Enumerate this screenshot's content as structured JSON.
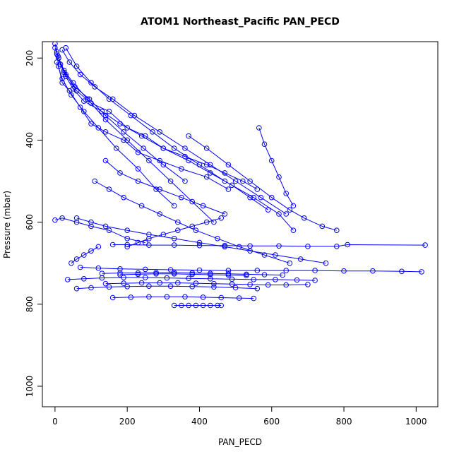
{
  "chart_data": {
    "type": "line",
    "title": "ATOM1 Northeast_Pacific PAN_PECD",
    "xlabel": "PAN_PECD",
    "ylabel": "Pressure (mbar)",
    "xlim": [
      -35,
      1060
    ],
    "ylim": [
      1050,
      160
    ],
    "y_reversed": true,
    "grid": false,
    "legend": "none",
    "color": "#0000ff",
    "x_ticks": [
      0,
      200,
      400,
      600,
      800,
      1000
    ],
    "x_tick_labels": [
      "0",
      "200",
      "400",
      "600",
      "800",
      "1000"
    ],
    "y_ticks": [
      200,
      400,
      600,
      800,
      1000
    ],
    "y_tick_labels": [
      "200",
      "400",
      "600",
      "800",
      "1000"
    ],
    "series": [
      {
        "x": [
          5,
          10,
          20,
          40,
          70,
          100,
          140,
          190,
          230,
          290,
          350,
          420,
          480
        ],
        "y": [
          190,
          220,
          260,
          280,
          320,
          360,
          380,
          400,
          430,
          450,
          470,
          490,
          520
        ]
      },
      {
        "x": [
          10,
          30,
          60,
          100,
          150,
          200,
          250,
          300,
          360,
          420,
          470,
          520,
          560
        ],
        "y": [
          200,
          240,
          280,
          310,
          330,
          370,
          390,
          420,
          440,
          460,
          480,
          500,
          520
        ]
      },
      {
        "x": [
          0,
          5,
          15,
          30,
          50,
          80,
          130,
          180,
          240,
          300,
          370,
          430,
          490,
          540,
          590
        ],
        "y": [
          165,
          185,
          215,
          245,
          275,
          305,
          330,
          360,
          390,
          420,
          450,
          480,
          510,
          540,
          570
        ]
      },
      {
        "x": [
          20,
          40,
          70,
          110,
          160,
          220,
          290,
          360,
          430,
          500,
          570,
          640
        ],
        "y": [
          180,
          210,
          240,
          270,
          300,
          340,
          380,
          420,
          460,
          500,
          540,
          580
        ]
      },
      {
        "x": [
          5,
          20,
          45,
          80,
          120,
          170,
          230,
          280,
          330
        ],
        "y": [
          210,
          250,
          290,
          330,
          370,
          420,
          470,
          520,
          560
        ]
      },
      {
        "x": [
          0,
          10,
          25,
          50,
          90,
          140,
          200,
          260,
          320,
          380,
          440
        ],
        "y": [
          175,
          200,
          230,
          260,
          300,
          350,
          400,
          450,
          500,
          550,
          600
        ]
      },
      {
        "x": [
          30,
          60,
          100,
          150,
          210,
          270,
          330,
          400,
          470,
          550,
          620,
          660
        ],
        "y": [
          175,
          220,
          260,
          300,
          340,
          380,
          420,
          460,
          500,
          540,
          580,
          620
        ]
      },
      {
        "x": [
          8,
          25,
          55,
          95,
          140,
          190,
          245,
          300,
          360
        ],
        "y": [
          195,
          235,
          270,
          300,
          340,
          380,
          420,
          460,
          500
        ]
      },
      {
        "x": [
          370,
          420,
          480,
          540,
          600,
          650,
          690,
          740,
          780
        ],
        "y": [
          390,
          420,
          460,
          500,
          540,
          570,
          590,
          610,
          620
        ]
      },
      {
        "x": [
          565,
          580,
          600,
          620,
          640,
          660
        ],
        "y": [
          370,
          410,
          450,
          490,
          530,
          560
        ]
      },
      {
        "x": [
          140,
          180,
          230,
          290,
          350,
          410,
          470
        ],
        "y": [
          450,
          480,
          500,
          520,
          540,
          560,
          580
        ]
      },
      {
        "x": [
          110,
          150,
          190,
          240,
          290,
          340,
          390,
          450,
          510,
          580,
          650
        ],
        "y": [
          500,
          520,
          540,
          560,
          580,
          600,
          620,
          640,
          660,
          680,
          700
        ]
      },
      {
        "x": [
          60,
          100,
          140,
          200,
          260,
          330,
          400,
          470,
          540,
          610,
          680,
          750
        ],
        "y": [
          590,
          600,
          610,
          620,
          630,
          640,
          650,
          660,
          670,
          680,
          690,
          700
        ]
      },
      {
        "x": [
          0,
          20,
          60,
          100,
          150,
          200,
          250
        ],
        "y": [
          595,
          590,
          600,
          610,
          620,
          640,
          650
        ]
      },
      {
        "x": [
          160,
          200,
          260,
          330,
          400,
          470,
          540,
          620,
          700,
          780,
          810,
          1025
        ],
        "y": [
          655,
          655,
          656,
          656,
          657,
          657,
          658,
          658,
          659,
          659,
          655,
          656
        ]
      },
      {
        "x": [
          70,
          120,
          180,
          250,
          320,
          400,
          480,
          560,
          640,
          720,
          800,
          880,
          960,
          1015
        ],
        "y": [
          710,
          712,
          714,
          715,
          716,
          717,
          718,
          718,
          718,
          718,
          719,
          719,
          720,
          721
        ]
      },
      {
        "x": [
          35,
          80,
          130,
          190,
          250,
          310,
          370,
          430,
          490,
          550,
          610,
          670,
          720
        ],
        "y": [
          740,
          738,
          736,
          735,
          735,
          736,
          737,
          738,
          739,
          740,
          740,
          741,
          742
        ]
      },
      {
        "x": [
          140,
          190,
          240,
          290,
          340,
          390,
          440,
          490,
          540,
          590,
          640,
          700
        ],
        "y": [
          750,
          749,
          748,
          748,
          748,
          749,
          750,
          751,
          752,
          753,
          753,
          752
        ]
      },
      {
        "x": [
          60,
          100,
          150,
          200,
          260,
          320,
          380,
          440,
          500,
          560
        ],
        "y": [
          762,
          760,
          758,
          757,
          756,
          756,
          757,
          758,
          760,
          762
        ]
      },
      {
        "x": [
          180,
          230,
          280,
          330,
          380,
          430,
          480,
          530
        ],
        "y": [
          728,
          727,
          726,
          726,
          727,
          728,
          729,
          730
        ]
      },
      {
        "x": [
          130,
          180,
          230,
          280,
          330,
          380,
          430,
          480,
          530,
          580,
          630
        ],
        "y": [
          725,
          724,
          724,
          723,
          723,
          724,
          725,
          726,
          727,
          728,
          729
        ]
      },
      {
        "x": [
          330,
          350,
          370,
          390,
          410,
          430,
          450,
          460
        ],
        "y": [
          803,
          803,
          803,
          803,
          803,
          803,
          803,
          803
        ]
      },
      {
        "x": [
          160,
          210,
          260,
          310,
          360,
          410,
          460,
          510,
          550
        ],
        "y": [
          784,
          783,
          782,
          782,
          782,
          783,
          784,
          785,
          786
        ]
      },
      {
        "x": [
          45,
          60,
          80,
          100,
          120
        ],
        "y": [
          700,
          690,
          680,
          670,
          660
        ]
      },
      {
        "x": [
          200,
          230,
          260,
          300,
          340,
          380,
          420,
          460
        ],
        "y": [
          660,
          650,
          640,
          630,
          620,
          610,
          600,
          590
        ]
      }
    ]
  }
}
